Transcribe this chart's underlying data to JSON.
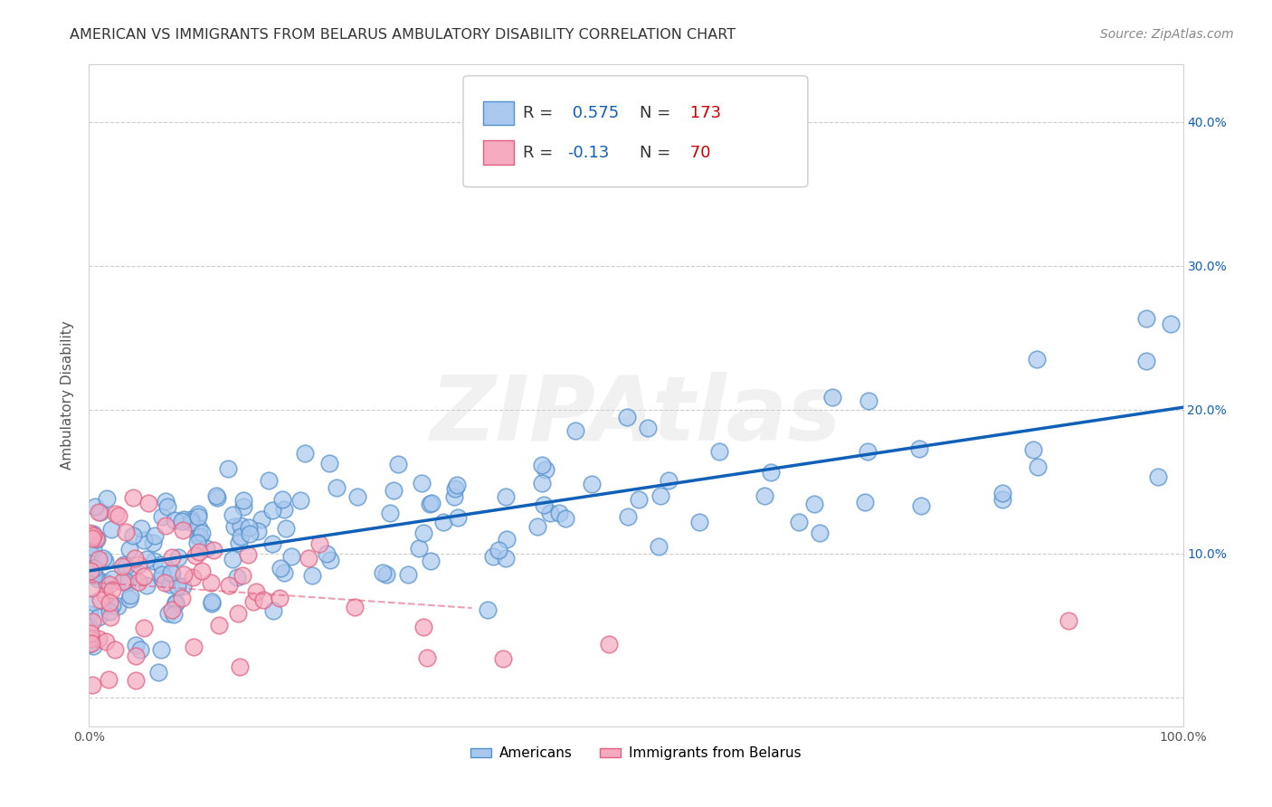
{
  "title": "AMERICAN VS IMMIGRANTS FROM BELARUS AMBULATORY DISABILITY CORRELATION CHART",
  "source": "Source: ZipAtlas.com",
  "ylabel": "Ambulatory Disability",
  "legend_americans": "Americans",
  "legend_immigrants": "Immigrants from Belarus",
  "r_americans": 0.575,
  "n_americans": 173,
  "r_immigrants": -0.13,
  "n_immigrants": 70,
  "xlim": [
    0.0,
    1.0
  ],
  "ylim": [
    -0.02,
    0.44
  ],
  "xticks": [
    0.0,
    0.1,
    0.2,
    0.3,
    0.4,
    0.5,
    0.6,
    0.7,
    0.8,
    0.9,
    1.0
  ],
  "xticklabels": [
    "0.0%",
    "",
    "",
    "",
    "",
    "",
    "",
    "",
    "",
    "",
    "100.0%"
  ],
  "yticks": [
    0.0,
    0.1,
    0.2,
    0.3,
    0.4
  ],
  "yticklabels_left": [
    "",
    "",
    "",
    "",
    ""
  ],
  "yticklabels_right": [
    "",
    "10.0%",
    "20.0%",
    "30.0%",
    "40.0%"
  ],
  "american_color": "#aac8ee",
  "american_edge": "#5090cc",
  "american_line_color": "#1060b8",
  "immigrant_color": "#f5aac0",
  "immigrant_edge": "#e06080",
  "immigrant_line_color": "#e06080",
  "watermark": "ZIPAtlas",
  "background_color": "#ffffff",
  "grid_color": "#cccccc",
  "title_color": "#333333",
  "axis_label_color": "#555555",
  "r_value_color": "#1060b8",
  "n_value_color": "#cc0000",
  "right_tick_color": "#1060b8"
}
